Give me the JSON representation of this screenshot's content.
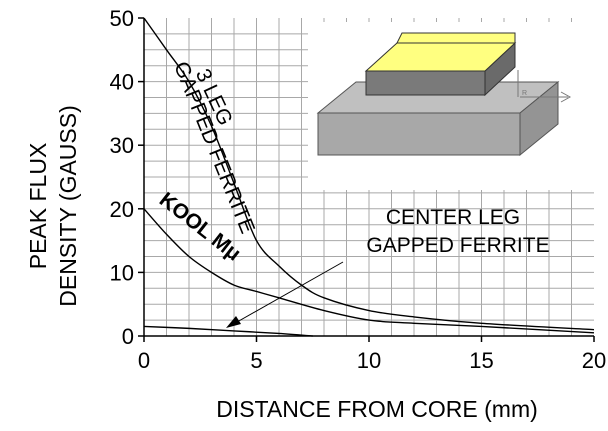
{
  "chart_data": {
    "type": "line",
    "xlabel": "DISTANCE FROM CORE (mm)",
    "ylabel_lines": [
      "PEAK FLUX",
      "DENSITY (GAUSS)"
    ],
    "xlim": [
      0,
      20
    ],
    "ylim": [
      0,
      50
    ],
    "x_ticks": [
      0,
      5,
      10,
      15,
      20
    ],
    "y_ticks": [
      0,
      10,
      20,
      30,
      40,
      50
    ],
    "x_tick_labels": [
      "0",
      "5",
      "10",
      "15",
      "20"
    ],
    "y_tick_labels": [
      "0",
      "10",
      "20",
      "30",
      "40",
      "50"
    ],
    "grid": true,
    "series": [
      {
        "name": "3 LEG GAPPED FERRITE",
        "x": [
          0,
          1,
          2,
          3,
          4,
          5,
          6,
          7,
          8,
          10,
          12,
          15,
          20
        ],
        "y": [
          50,
          45,
          40,
          33,
          24,
          15,
          11,
          8,
          6,
          4,
          3,
          2,
          1
        ]
      },
      {
        "name": "KOOL Mμ",
        "x": [
          0,
          1,
          2,
          3,
          4,
          5,
          6,
          8,
          10,
          12,
          15,
          20
        ],
        "y": [
          20,
          16,
          12.5,
          10,
          8,
          7,
          6,
          4,
          2.5,
          2,
          1.5,
          0.5
        ]
      },
      {
        "name": "CENTER LEG GAPPED FERRITE",
        "x": [
          0,
          2,
          4,
          6,
          7.5
        ],
        "y": [
          1.5,
          1.2,
          0.8,
          0.4,
          0
        ]
      }
    ],
    "annotations": {
      "three_leg": [
        "3 LEG",
        "GAPPED FERRITE"
      ],
      "kool": "KOOL Mμ",
      "center_leg": [
        "CENTER LEG",
        "GAPPED FERRITE"
      ]
    }
  },
  "inset": {
    "label": "R"
  },
  "colors": {
    "curve": "#000000",
    "grid": "#a8a8a8",
    "inset_top_face": "#ffff80",
    "inset_base_top": "#c0c0c0",
    "inset_base_front": "#a8a8a8",
    "inset_block_front": "#7a7a7a"
  }
}
